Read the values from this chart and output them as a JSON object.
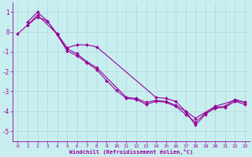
{
  "xlabel": "Windchill (Refroidissement éolien,°C)",
  "background_color": "#c8eef0",
  "line_color": "#990099",
  "grid_color": "#b0d8d8",
  "xlim": [
    -0.5,
    23.5
  ],
  "ylim": [
    -5.5,
    1.5
  ],
  "yticks": [
    1,
    0,
    -1,
    -2,
    -3,
    -4,
    -5
  ],
  "xticks": [
    0,
    1,
    2,
    3,
    4,
    5,
    6,
    7,
    8,
    9,
    10,
    11,
    12,
    13,
    14,
    15,
    16,
    17,
    18,
    19,
    20,
    21,
    22,
    23
  ],
  "curve1_x": [
    0,
    1,
    2,
    3,
    4,
    5,
    6,
    7,
    8,
    9,
    10,
    11,
    12,
    13,
    14,
    15,
    16,
    17,
    18,
    19,
    20,
    21,
    22,
    23
  ],
  "curve1_y": [
    -0.1,
    0.35,
    0.75,
    0.55,
    -0.15,
    -0.95,
    -1.2,
    -1.55,
    -1.9,
    -2.45,
    -2.95,
    -3.35,
    -3.4,
    -3.65,
    -3.5,
    -3.55,
    -3.75,
    -4.15,
    -4.55,
    -4.1,
    -3.85,
    -3.8,
    -3.5,
    -3.65
  ],
  "curve2_x": [
    1,
    2,
    4,
    5,
    6,
    7,
    8,
    11,
    12,
    13,
    14,
    15,
    16,
    17,
    18,
    20,
    22,
    23
  ],
  "curve2_y": [
    0.35,
    0.85,
    -0.1,
    -0.85,
    -1.1,
    -1.5,
    -1.8,
    -3.3,
    -3.35,
    -3.55,
    -3.45,
    -3.5,
    -3.7,
    -4.0,
    -4.35,
    -3.75,
    -3.45,
    -3.55
  ],
  "curve3_x": [
    1,
    2,
    3,
    4,
    5,
    6,
    7,
    8,
    14,
    15,
    16,
    17,
    18,
    19,
    20,
    21,
    22,
    23
  ],
  "curve3_y": [
    0.5,
    1.0,
    0.55,
    -0.1,
    -0.8,
    -0.65,
    -0.65,
    -0.75,
    -3.3,
    -3.35,
    -3.5,
    -4.0,
    -4.7,
    -4.15,
    -3.8,
    -3.75,
    -3.4,
    -3.55
  ]
}
